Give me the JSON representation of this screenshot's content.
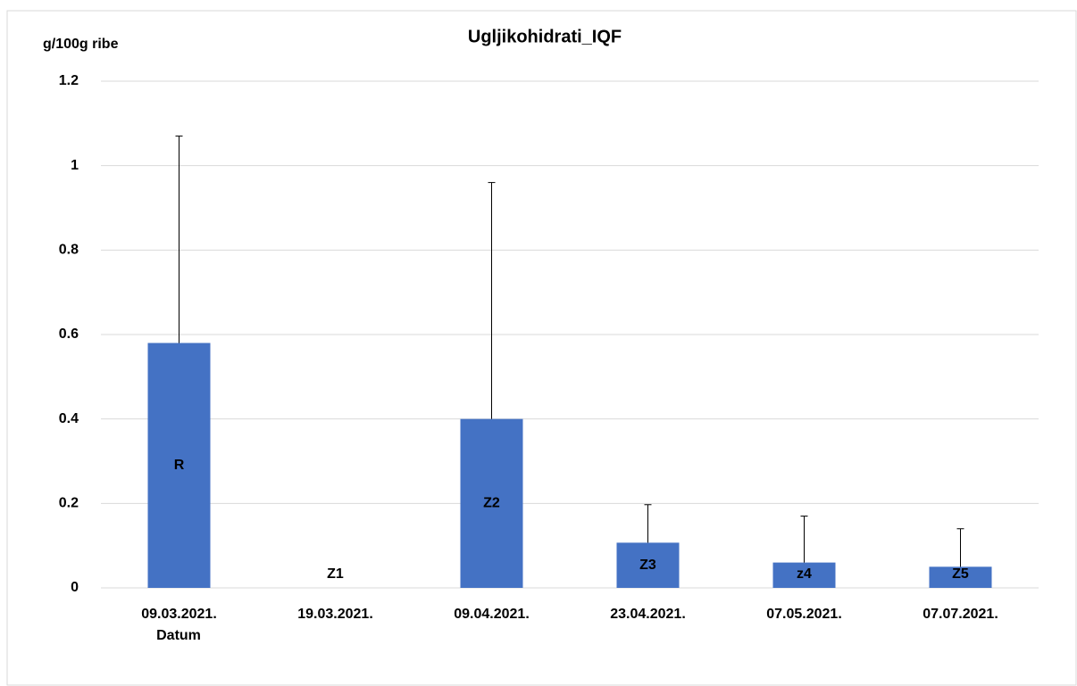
{
  "chart_data": {
    "type": "bar",
    "title": "Ugljikohidrati_IQF",
    "y_label": "g/100g ribe",
    "x_label": "Datum",
    "categories": [
      "09.03.2021.",
      "19.03.2021.",
      "09.04.2021.",
      "23.04.2021.",
      "07.05.2021.",
      "07.07.2021."
    ],
    "values": [
      0.58,
      0,
      0.4,
      0.107,
      0.06,
      0.05
    ],
    "errors": [
      0.49,
      null,
      0.56,
      0.09,
      0.11,
      0.09
    ],
    "bar_labels": [
      "R",
      "Z1",
      "Z2",
      "Z3",
      "z4",
      "Z5"
    ],
    "color": "#4472c4",
    "ylim": [
      0,
      1.2
    ],
    "yticks": [
      0,
      0.2,
      0.4,
      0.6,
      0.8,
      1,
      1.2
    ],
    "grid": true
  }
}
